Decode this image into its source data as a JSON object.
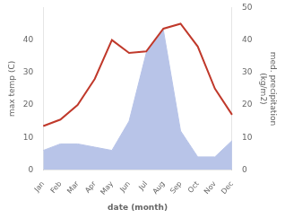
{
  "chart_data": {
    "type": "line",
    "categories": [
      "Jan",
      "Feb",
      "Mar",
      "Apr",
      "May",
      "Jun",
      "Jul",
      "Aug",
      "Sep",
      "Oct",
      "Nov",
      "Dec"
    ],
    "xlabel": "date (month)",
    "ylabel": "max temp (C)",
    "y2label": "med. precipitation\n(kg/m2)",
    "series": [
      {
        "type": "area",
        "axis": "y2",
        "color": "#b8c4e8",
        "values": [
          6.0,
          8.0,
          8.0,
          7.0,
          6.0,
          15.0,
          36.0,
          43.0,
          12.0,
          4.0,
          4.0,
          9.0
        ]
      },
      {
        "type": "line",
        "color": "#c0392b",
        "values": [
          13.5,
          15.5,
          20.0,
          28.0,
          40.0,
          36.0,
          36.5,
          43.5,
          45.0,
          38.0,
          25.0,
          17.0
        ]
      }
    ],
    "ylim": [
      0,
      50
    ],
    "yticks": [
      0,
      10,
      20,
      30,
      40
    ],
    "y2lim": [
      0,
      50
    ],
    "y2ticks": [
      0,
      10,
      20,
      30,
      40,
      50
    ],
    "grid": false,
    "legend": false
  }
}
